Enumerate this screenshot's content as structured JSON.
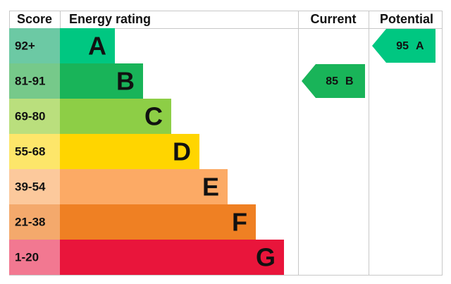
{
  "header": {
    "score": "Score",
    "rating": "Energy rating",
    "current": "Current",
    "potential": "Potential"
  },
  "bands": [
    {
      "score": "92+",
      "letter": "A",
      "color": "#00c781",
      "score_color": "#6cc9a4"
    },
    {
      "score": "81-91",
      "letter": "B",
      "color": "#19b459",
      "score_color": "#76c98a"
    },
    {
      "score": "69-80",
      "letter": "C",
      "color": "#8dce46",
      "score_color": "#badf7d"
    },
    {
      "score": "55-68",
      "letter": "D",
      "color": "#ffd500",
      "score_color": "#fde66a"
    },
    {
      "score": "39-54",
      "letter": "E",
      "color": "#fcaa65",
      "score_color": "#fcc99c"
    },
    {
      "score": "21-38",
      "letter": "F",
      "color": "#ef8023",
      "score_color": "#f4a96c"
    },
    {
      "score": "1-20",
      "letter": "G",
      "color": "#e9153b",
      "score_color": "#f27891"
    }
  ],
  "current": {
    "value": 85,
    "letter": "B",
    "color": "#19b459"
  },
  "potential": {
    "value": 95,
    "letter": "A",
    "color": "#00c781"
  }
}
